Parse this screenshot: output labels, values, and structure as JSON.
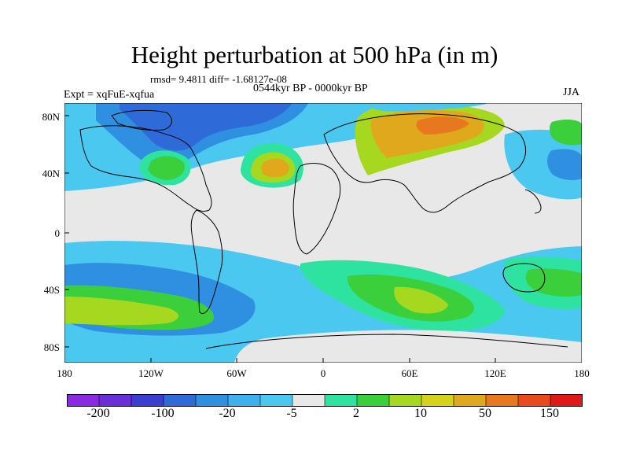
{
  "title": "Height perturbation at 500 hPa (in m)",
  "stats": "rmsd= 9.4811 diff= -1.68127e-08",
  "experiment": "Expt = xqFuE-xqfua",
  "period": "0544kyr BP - 0000kyr BP",
  "season": "JJA",
  "lat_labels": [
    "80N",
    "40N",
    "0",
    "40S",
    "80S"
  ],
  "lon_labels": [
    "180",
    "120W",
    "60W",
    "0",
    "60E",
    "120E",
    "180"
  ],
  "colorbar": {
    "labels": [
      "-200",
      "-100",
      "-20",
      "-5",
      "2",
      "10",
      "50",
      "150"
    ],
    "colors": [
      "#8a2be2",
      "#6a2fd6",
      "#3a3fd0",
      "#2e6bd8",
      "#2f8fe0",
      "#3eb0ec",
      "#4bc8f0",
      "#e8e8e8",
      "#2ee3a0",
      "#3ccf3c",
      "#a6d820",
      "#d6d21c",
      "#e0a81c",
      "#e87820",
      "#e84a1c",
      "#e01818"
    ]
  },
  "palette": {
    "neutral": "#e8e8e8",
    "blue_dark": "#2e6bd8",
    "blue": "#2f8fe0",
    "blue_light": "#4bc8f0",
    "teal": "#2ee3a0",
    "green": "#3ccf3c",
    "yellowgreen": "#a6d820",
    "orange": "#e0a81c",
    "red_orange": "#e87820"
  }
}
